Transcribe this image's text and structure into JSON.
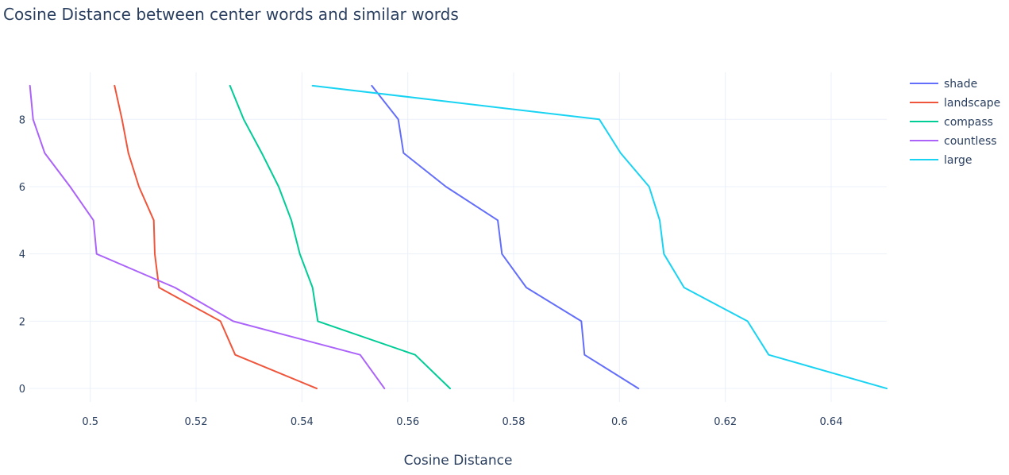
{
  "chart_data": {
    "type": "line",
    "title": "Cosine Distance between center words and similar words",
    "xlabel": "Cosine Distance",
    "ylabel": "",
    "xlim": [
      0.4885,
      0.6505
    ],
    "ylim": [
      -0.4,
      9.4
    ],
    "xticks": [
      0.5,
      0.52,
      0.54,
      0.56,
      0.58,
      0.6,
      0.62,
      0.64
    ],
    "xtick_labels": [
      "0.5",
      "0.52",
      "0.54",
      "0.56",
      "0.58",
      "0.6",
      "0.62",
      "0.64"
    ],
    "yticks": [
      0,
      2,
      4,
      6,
      8
    ],
    "ytick_labels": [
      "0",
      "2",
      "4",
      "6",
      "8"
    ],
    "grid": true,
    "legend_position": "right",
    "y": [
      0,
      1,
      2,
      3,
      4,
      5,
      6,
      7,
      8,
      9
    ],
    "series": [
      {
        "name": "shade",
        "color": "#636efa",
        "x": [
          0.6036,
          0.5934,
          0.5928,
          0.5824,
          0.5778,
          0.577,
          0.5672,
          0.5592,
          0.5582,
          0.5532
        ]
      },
      {
        "name": "landscape",
        "color": "#ef553b",
        "x": [
          0.5428,
          0.5274,
          0.5246,
          0.513,
          0.5122,
          0.512,
          0.5092,
          0.5072,
          0.506,
          0.5046
        ]
      },
      {
        "name": "compass",
        "color": "#00cc96",
        "x": [
          0.568,
          0.5614,
          0.543,
          0.542,
          0.5396,
          0.538,
          0.5356,
          0.5324,
          0.529,
          0.5264
        ]
      },
      {
        "name": "countless",
        "color": "#ab63fa",
        "x": [
          0.5556,
          0.551,
          0.527,
          0.516,
          0.5012,
          0.5006,
          0.4962,
          0.4914,
          0.4892,
          0.4886
        ]
      },
      {
        "name": "large",
        "color": "#19d3f3",
        "x": [
          0.6505,
          0.6282,
          0.6242,
          0.6122,
          0.6084,
          0.6076,
          0.6056,
          0.6002,
          0.5962,
          0.542
        ]
      }
    ]
  }
}
